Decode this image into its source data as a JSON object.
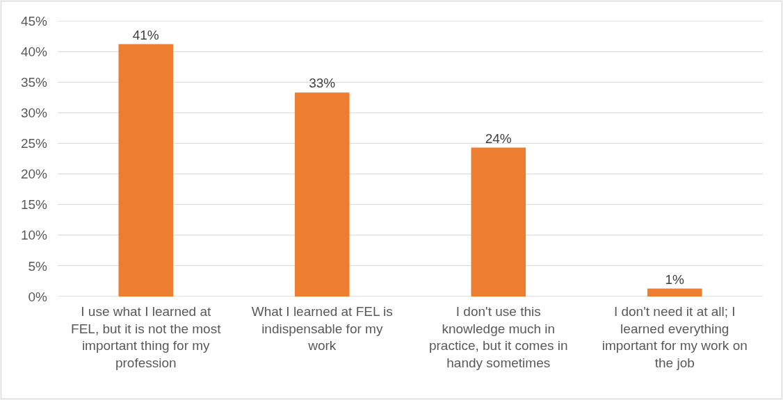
{
  "chart_data": {
    "type": "bar",
    "categories": [
      "I use what I learned at FEL, but it is not the most important thing for my profession",
      "What I learned at FEL is indispensable for my work",
      "I don't use this knowledge much in practice, but it comes in handy sometimes",
      "I don't need it at all; I learned everything important for my work on the job"
    ],
    "values": [
      41.2,
      33.3,
      24.3,
      1.3
    ],
    "value_labels": [
      "41%",
      "33%",
      "24%",
      "1%"
    ],
    "color": "#ed7d31",
    "ylim": [
      0,
      45
    ],
    "yticks": [
      {
        "value": 0,
        "label": "0%"
      },
      {
        "value": 5,
        "label": "5%"
      },
      {
        "value": 10,
        "label": "10%"
      },
      {
        "value": 15,
        "label": "15%"
      },
      {
        "value": 20,
        "label": "20%"
      },
      {
        "value": 25,
        "label": "25%"
      },
      {
        "value": 30,
        "label": "30%"
      },
      {
        "value": 35,
        "label": "35%"
      },
      {
        "value": 40,
        "label": "40%"
      },
      {
        "value": 45,
        "label": "45%"
      }
    ],
    "grid": "y"
  }
}
